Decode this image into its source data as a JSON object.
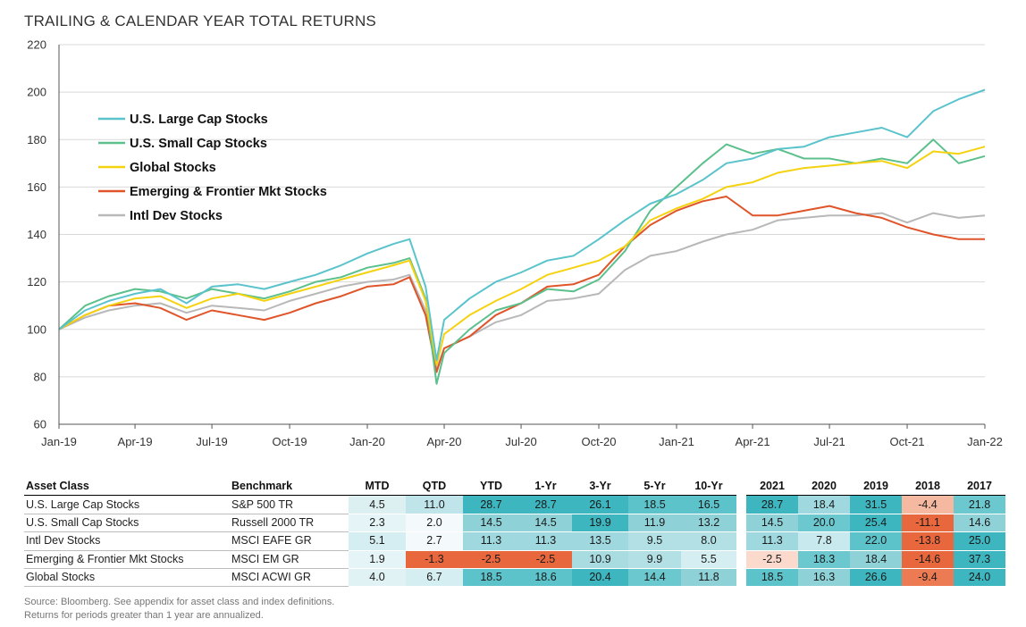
{
  "title": "TRAILING & CALENDAR YEAR TOTAL RETURNS",
  "chart_data": {
    "type": "line",
    "ylim": [
      60,
      220
    ],
    "yticks": [
      60,
      80,
      100,
      120,
      140,
      160,
      180,
      200,
      220
    ],
    "xlim": [
      "2019-01-01",
      "2022-01-01"
    ],
    "xticks": [
      {
        "date": "2019-01-01",
        "label": "Jan-19"
      },
      {
        "date": "2019-04-01",
        "label": "Apr-19"
      },
      {
        "date": "2019-07-01",
        "label": "Jul-19"
      },
      {
        "date": "2019-10-01",
        "label": "Oct-19"
      },
      {
        "date": "2020-01-01",
        "label": "Jan-20"
      },
      {
        "date": "2020-04-01",
        "label": "Apr-20"
      },
      {
        "date": "2020-07-01",
        "label": "Jul-20"
      },
      {
        "date": "2020-10-01",
        "label": "Oct-20"
      },
      {
        "date": "2021-01-01",
        "label": "Jan-21"
      },
      {
        "date": "2021-04-01",
        "label": "Apr-21"
      },
      {
        "date": "2021-07-01",
        "label": "Jul-21"
      },
      {
        "date": "2021-10-01",
        "label": "Oct-21"
      },
      {
        "date": "2022-01-01",
        "label": "Jan-22"
      }
    ],
    "grid": "horizontal",
    "legend": "upper-left",
    "x": [
      "2019-01-01",
      "2019-02-01",
      "2019-03-01",
      "2019-04-01",
      "2019-05-01",
      "2019-06-01",
      "2019-07-01",
      "2019-08-01",
      "2019-09-01",
      "2019-10-01",
      "2019-11-01",
      "2019-12-01",
      "2020-01-01",
      "2020-02-01",
      "2020-02-20",
      "2020-03-10",
      "2020-03-23",
      "2020-04-01",
      "2020-05-01",
      "2020-06-01",
      "2020-07-01",
      "2020-08-01",
      "2020-09-01",
      "2020-10-01",
      "2020-11-01",
      "2020-12-01",
      "2021-01-01",
      "2021-02-01",
      "2021-03-01",
      "2021-04-01",
      "2021-05-01",
      "2021-06-01",
      "2021-07-01",
      "2021-08-01",
      "2021-09-01",
      "2021-10-01",
      "2021-11-01",
      "2021-12-01",
      "2022-01-01"
    ],
    "series": [
      {
        "name": "U.S. Large Cap Stocks",
        "color": "#5ac3cc",
        "values": [
          100,
          108,
          112,
          115,
          117,
          111,
          118,
          119,
          117,
          120,
          123,
          127,
          132,
          136,
          138,
          118,
          87,
          104,
          113,
          120,
          124,
          129,
          131,
          138,
          146,
          153,
          157,
          163,
          170,
          172,
          176,
          177,
          181,
          183,
          185,
          181,
          192,
          197,
          201
        ]
      },
      {
        "name": "U.S. Small Cap Stocks",
        "color": "#5cc08c",
        "values": [
          100,
          110,
          114,
          117,
          116,
          113,
          117,
          115,
          113,
          116,
          120,
          122,
          126,
          128,
          130,
          113,
          77,
          90,
          100,
          108,
          111,
          117,
          116,
          121,
          133,
          150,
          160,
          170,
          178,
          174,
          176,
          172,
          172,
          170,
          172,
          170,
          180,
          170,
          173
        ]
      },
      {
        "name": "Global Stocks",
        "color": "#f5d20f",
        "values": [
          100,
          106,
          110,
          113,
          114,
          109,
          113,
          115,
          112,
          115,
          118,
          121,
          124,
          127,
          129,
          112,
          85,
          98,
          106,
          112,
          117,
          123,
          126,
          129,
          135,
          146,
          151,
          155,
          160,
          162,
          166,
          168,
          169,
          170,
          171,
          168,
          175,
          174,
          177
        ]
      },
      {
        "name": "Emerging & Frontier Mkt Stocks",
        "color": "#e0542a",
        "values": [
          100,
          106,
          110,
          111,
          109,
          104,
          108,
          106,
          104,
          107,
          111,
          114,
          118,
          119,
          122,
          106,
          82,
          92,
          97,
          106,
          111,
          118,
          119,
          123,
          135,
          144,
          150,
          154,
          156,
          148,
          148,
          150,
          152,
          149,
          147,
          143,
          140,
          138,
          138
        ]
      },
      {
        "name": "Intl Dev Stocks",
        "color": "#b8b8b8",
        "values": [
          100,
          105,
          108,
          110,
          111,
          107,
          110,
          109,
          108,
          112,
          115,
          118,
          120,
          121,
          123,
          108,
          83,
          92,
          97,
          103,
          106,
          112,
          113,
          115,
          125,
          131,
          133,
          137,
          140,
          142,
          146,
          147,
          148,
          148,
          149,
          145,
          149,
          147,
          148
        ]
      }
    ]
  },
  "table": {
    "headers": [
      "Asset Class",
      "Benchmark",
      "MTD",
      "QTD",
      "YTD",
      "1-Yr",
      "3-Yr",
      "5-Yr",
      "10-Yr",
      "2021",
      "2020",
      "2019",
      "2018",
      "2017"
    ],
    "rows": [
      {
        "asset": "U.S. Large Cap Stocks",
        "benchmark": "S&P 500 TR",
        "values": [
          "4.5",
          "11.0",
          "28.7",
          "28.7",
          "26.1",
          "18.5",
          "16.5",
          "28.7",
          "18.4",
          "31.5",
          "-4.4",
          "21.8"
        ],
        "colors": [
          "#dcf0f2",
          "#bfe4e9",
          "#3eb6bf",
          "#3eb6bf",
          "#3eb6bf",
          "#5cc3cb",
          "#5cc3cb",
          "#3eb6bf",
          "#9fd8de",
          "#3eb6bf",
          "#f5b8a0",
          "#6cc8cf"
        ]
      },
      {
        "asset": "U.S. Small Cap Stocks",
        "benchmark": "Russell 2000 TR",
        "values": [
          "2.3",
          "2.0",
          "14.5",
          "14.5",
          "19.9",
          "11.9",
          "13.2",
          "14.5",
          "20.0",
          "25.4",
          "-11.1",
          "14.6"
        ],
        "colors": [
          "#e5f4f6",
          "#f4fafb",
          "#8ed2d8",
          "#8ed2d8",
          "#3eb6bf",
          "#8ed2d8",
          "#8ed2d8",
          "#8ed2d8",
          "#6cc8cf",
          "#3eb6bf",
          "#e8673c",
          "#8ed2d8"
        ]
      },
      {
        "asset": "Intl Dev Stocks",
        "benchmark": "MSCI EAFE GR",
        "values": [
          "5.1",
          "2.7",
          "11.3",
          "11.3",
          "13.5",
          "9.5",
          "8.0",
          "11.3",
          "7.8",
          "22.0",
          "-13.8",
          "25.0"
        ],
        "colors": [
          "#d5eef1",
          "#f4fafb",
          "#9fd8de",
          "#9fd8de",
          "#9fd8de",
          "#b2e0e5",
          "#b2e0e5",
          "#9fd8de",
          "#c8e9ed",
          "#5cc3cb",
          "#e8673c",
          "#3eb6bf"
        ]
      },
      {
        "asset": "Emerging & Frontier Mkt Stocks",
        "benchmark": "MSCI EM GR",
        "values": [
          "1.9",
          "-1.3",
          "-2.5",
          "-2.5",
          "10.9",
          "9.9",
          "5.5",
          "-2.5",
          "18.3",
          "18.4",
          "-14.6",
          "37.3"
        ],
        "colors": [
          "#e5f4f6",
          "#e8673c",
          "#e8673c",
          "#e8673c",
          "#a8dce1",
          "#b2e0e5",
          "#d5eef1",
          "#fbd9cc",
          "#6cc8cf",
          "#8ed2d8",
          "#e8673c",
          "#3eb6bf"
        ]
      },
      {
        "asset": "Global Stocks",
        "benchmark": "MSCI ACWI GR",
        "values": [
          "4.0",
          "6.7",
          "18.5",
          "18.6",
          "20.4",
          "14.4",
          "11.8",
          "18.5",
          "16.3",
          "26.6",
          "-9.4",
          "24.0"
        ],
        "colors": [
          "#e0f2f4",
          "#d5eef1",
          "#5cc3cb",
          "#5cc3cb",
          "#3eb6bf",
          "#6cc8cf",
          "#8ed2d8",
          "#5cc3cb",
          "#8ed2d8",
          "#3eb6bf",
          "#ec7a52",
          "#3eb6bf"
        ]
      }
    ]
  },
  "footnotes": [
    "Source: Bloomberg. See appendix for asset class and index definitions.",
    "Returns for periods greater than 1 year are annualized."
  ]
}
